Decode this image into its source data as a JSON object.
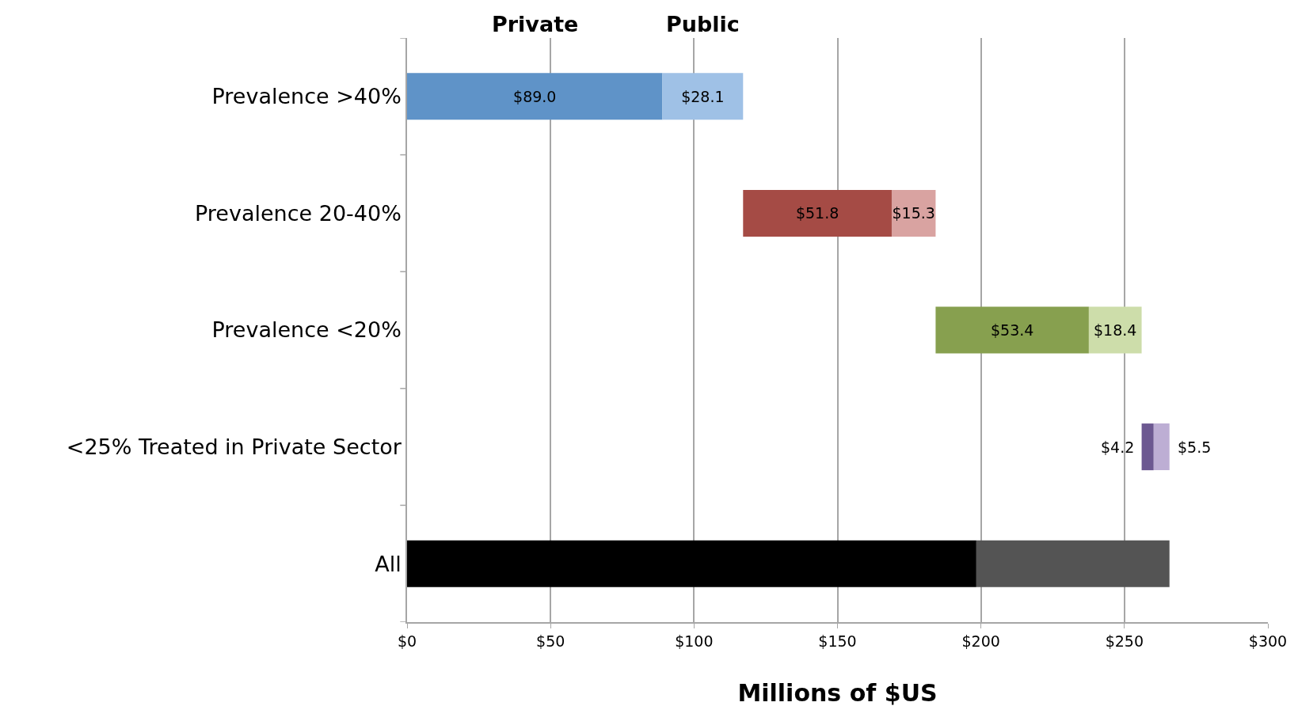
{
  "chart_data": {
    "type": "bar",
    "orientation": "horizontal",
    "categories": [
      "Prevalence >40%",
      "Prevalence 20-40%",
      "Prevalence <20%",
      "<25% Treated in Private Sector",
      "All"
    ],
    "series": [
      {
        "name": "Private",
        "base": [
          0,
          117.1,
          184.2,
          256.0,
          0
        ],
        "colors": [
          "#5f93c8",
          "#a54b45",
          "#87a04f",
          "#6c5891",
          "#000000"
        ],
        "values": [
          89.0,
          51.8,
          53.4,
          4.2,
          198.4
        ],
        "value_labels": [
          "$89.0",
          "$51.8",
          "$53.4",
          "$4.2",
          null
        ]
      },
      {
        "name": "Public",
        "base": [
          89.0,
          168.9,
          237.6,
          260.2,
          198.4
        ],
        "colors": [
          "#9fc1e6",
          "#d9a3a1",
          "#cdddaa",
          "#bdaed4",
          "#545454"
        ],
        "values": [
          28.1,
          15.3,
          18.4,
          5.5,
          67.3
        ],
        "value_labels": [
          "$28.1",
          "$15.3",
          "$18.4",
          "$5.5",
          null
        ]
      }
    ],
    "xlabel": "Millions of $US",
    "xlim": [
      0,
      300
    ],
    "xticks": [
      {
        "value": 0,
        "label": "$0"
      },
      {
        "value": 50,
        "label": "$50"
      },
      {
        "value": 100,
        "label": "$100"
      },
      {
        "value": 150,
        "label": "$150"
      },
      {
        "value": 200,
        "label": "$200"
      },
      {
        "value": 250,
        "label": "$250"
      },
      {
        "value": 300,
        "label": "$300"
      }
    ],
    "grid": "x",
    "legend": false
  }
}
